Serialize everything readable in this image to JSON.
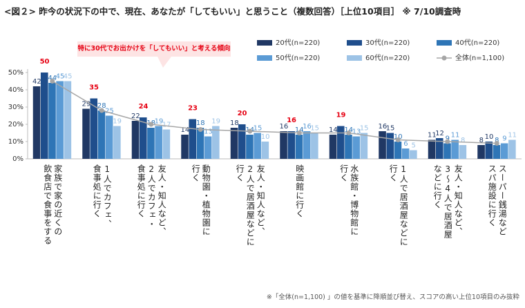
{
  "chart_data": {
    "type": "bar",
    "title": "<図２> 昨今の状況下の中で、現在、あなたが「してもいい」と思うこと（複数回答）［上位10項目］ ※ 7/10調査時",
    "annotation": "特に30代でお出かけを「してもいい」と考える傾向",
    "footnote": "※「全体(n=1,100) 」の値を基準に降順並び替え、スコアの高い上位10項目のみ抜粋",
    "categories": [
      "家族で家の近くの\n飲食店で食事をする",
      "1人でカフェ、\n食事処に行く",
      "友人・知人など、\n2人でカフェ・\n食事処に行く",
      "動物園・植物園に\n行く",
      "友人・知人など、\n2人で居酒屋などに\n行く",
      "映画館に行く",
      "水族館・博物館に\n行く",
      "1人で居酒屋などに\n行く",
      "友人・知人など、\n3～4人で居酒屋\nなどに行く",
      "スーパー銭湯など\nスパ施設に行く"
    ],
    "series": [
      {
        "name": "20代(n=220)",
        "color": "#203864",
        "label_color": "#203864",
        "values": [
          42,
          29,
          22,
          14,
          18,
          16,
          14,
          16,
          11,
          8
        ]
      },
      {
        "name": "30代(n=220)",
        "color": "#1f4e8c",
        "label_color": "#203864",
        "values": [
          50,
          35,
          24,
          23,
          20,
          16,
          19,
          15,
          12,
          10
        ]
      },
      {
        "name": "40代(n=220)",
        "color": "#2e75b6",
        "label_color": "#2e75b6",
        "values": [
          44,
          28,
          18,
          18,
          14,
          14,
          14,
          10,
          9,
          8
        ]
      },
      {
        "name": "50代(n=220)",
        "color": "#5b9bd5",
        "label_color": "#5b9bd5",
        "values": [
          45,
          25,
          19,
          13,
          15,
          16,
          13,
          6,
          11,
          9
        ]
      },
      {
        "name": "60代(n=220)",
        "color": "#9dc3e6",
        "label_color": "#9dc3e6",
        "values": [
          45,
          19,
          17,
          19,
          10,
          15,
          15,
          5,
          8,
          11
        ]
      },
      {
        "name": "全体(n=1,100)",
        "type": "line",
        "color": "#a6a6a6",
        "values": [
          45,
          28,
          20,
          17,
          16,
          15,
          15,
          11,
          10,
          9
        ]
      }
    ],
    "highlight": {
      "series": 1,
      "categories": [
        0,
        1,
        2,
        3,
        4,
        5,
        6
      ],
      "color": "#e60012"
    },
    "ylim": [
      0,
      50
    ],
    "yticks": [
      {
        "value": 0,
        "label": "0%"
      },
      {
        "value": 10,
        "label": "10%"
      },
      {
        "value": 20,
        "label": "20%"
      },
      {
        "value": 30,
        "label": "30%"
      },
      {
        "value": 40,
        "label": "40%"
      },
      {
        "value": 50,
        "label": "50%"
      }
    ],
    "grid": false
  }
}
